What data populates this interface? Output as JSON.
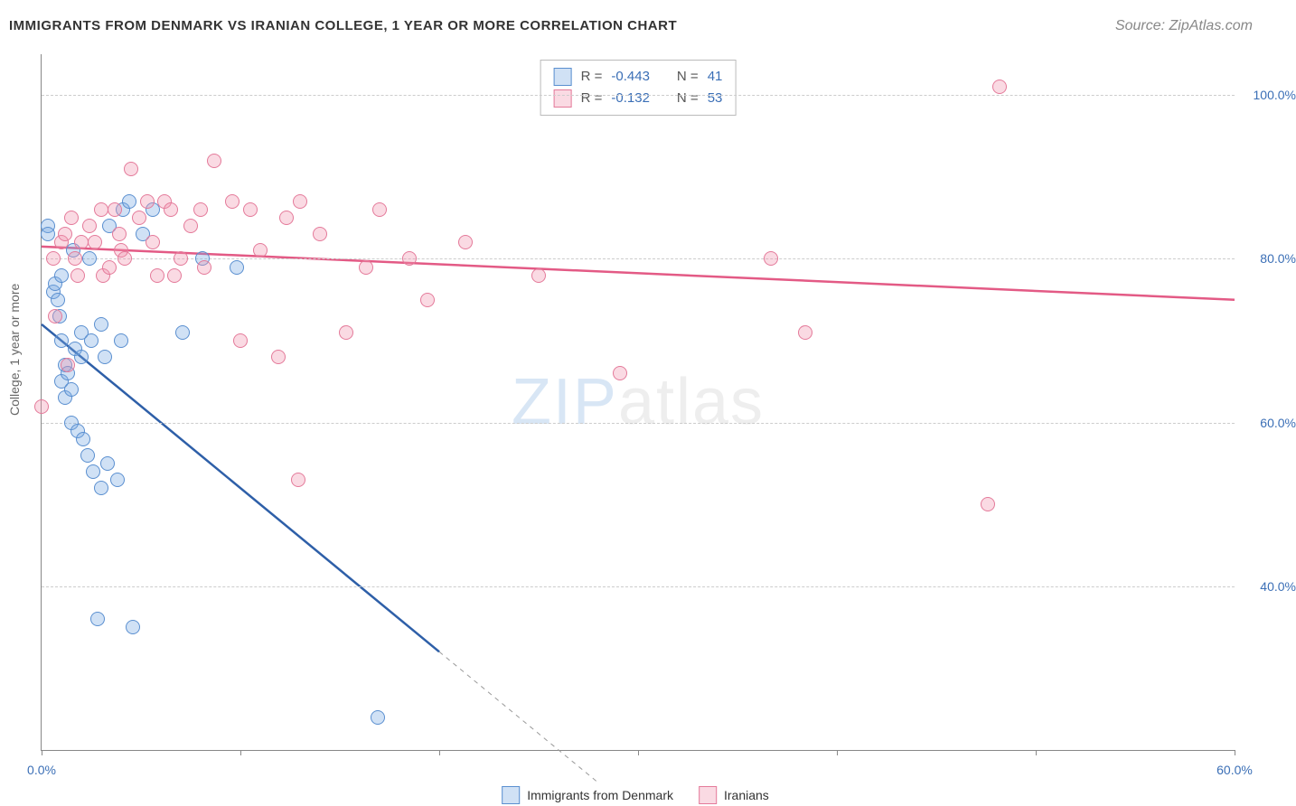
{
  "title": "IMMIGRANTS FROM DENMARK VS IRANIAN COLLEGE, 1 YEAR OR MORE CORRELATION CHART",
  "title_fontsize": 15,
  "title_color": "#333333",
  "source_text": "Source: ZipAtlas.com",
  "ylabel": "College, 1 year or more",
  "xaxis": {
    "min": 0.0,
    "max": 60.0,
    "ticks": [
      0.0,
      10.0,
      20.0,
      30.0,
      40.0,
      50.0,
      60.0
    ],
    "tick_labels": [
      "0.0%",
      "",
      "",
      "",
      "",
      "",
      "60.0%"
    ],
    "label_color": "#3b6fb6"
  },
  "yaxis": {
    "min": 20.0,
    "max": 105.0,
    "grid": [
      40.0,
      60.0,
      80.0,
      100.0
    ],
    "tick_labels": [
      "40.0%",
      "60.0%",
      "80.0%",
      "100.0%"
    ],
    "label_color": "#3b6fb6"
  },
  "watermark": {
    "part1": "ZIP",
    "part2": "atlas"
  },
  "series": [
    {
      "key": "denmark",
      "label": "Immigrants from Denmark",
      "color_fill": "rgba(120,170,225,0.35)",
      "color_stroke": "#5a8fd0",
      "line_color": "#2e5fa8",
      "marker_r": 8,
      "R": "-0.443",
      "N": "41",
      "trend": {
        "x1": 0.0,
        "y1": 72.0,
        "x2": 20.0,
        "y2": 32.0,
        "dash_to_x": 28.0,
        "dash_to_y": 16.0
      },
      "points": [
        [
          0.3,
          84
        ],
        [
          0.3,
          83
        ],
        [
          0.6,
          76
        ],
        [
          0.7,
          77
        ],
        [
          0.8,
          75
        ],
        [
          0.9,
          73
        ],
        [
          1.0,
          70
        ],
        [
          1.0,
          65
        ],
        [
          1.0,
          78
        ],
        [
          1.2,
          67
        ],
        [
          1.2,
          63
        ],
        [
          1.3,
          66
        ],
        [
          1.5,
          64
        ],
        [
          1.5,
          60
        ],
        [
          1.6,
          81
        ],
        [
          1.7,
          69
        ],
        [
          1.8,
          59
        ],
        [
          2.0,
          71
        ],
        [
          2.0,
          68
        ],
        [
          2.1,
          58
        ],
        [
          2.3,
          56
        ],
        [
          2.4,
          80
        ],
        [
          2.5,
          70
        ],
        [
          2.6,
          54
        ],
        [
          2.8,
          36
        ],
        [
          3.0,
          52
        ],
        [
          3.0,
          72
        ],
        [
          3.2,
          68
        ],
        [
          3.3,
          55
        ],
        [
          3.4,
          84
        ],
        [
          3.8,
          53
        ],
        [
          4.0,
          70
        ],
        [
          4.1,
          86
        ],
        [
          4.6,
          35
        ],
        [
          5.1,
          83
        ],
        [
          5.6,
          86
        ],
        [
          7.1,
          71
        ],
        [
          8.1,
          80
        ],
        [
          9.8,
          79
        ],
        [
          16.9,
          24
        ],
        [
          4.4,
          87
        ]
      ]
    },
    {
      "key": "iranians",
      "label": "Iranians",
      "color_fill": "rgba(240,150,175,0.35)",
      "color_stroke": "#e47a9a",
      "line_color": "#e35a85",
      "marker_r": 8,
      "R": "-0.132",
      "N": "53",
      "trend": {
        "x1": 0.0,
        "y1": 81.5,
        "x2": 60.0,
        "y2": 75.0
      },
      "points": [
        [
          0.0,
          62
        ],
        [
          0.6,
          80
        ],
        [
          0.7,
          73
        ],
        [
          1.0,
          82
        ],
        [
          1.2,
          83
        ],
        [
          1.3,
          67
        ],
        [
          1.5,
          85
        ],
        [
          1.7,
          80
        ],
        [
          1.8,
          78
        ],
        [
          2.0,
          82
        ],
        [
          2.4,
          84
        ],
        [
          2.7,
          82
        ],
        [
          3.0,
          86
        ],
        [
          3.1,
          78
        ],
        [
          3.4,
          79
        ],
        [
          3.7,
          86
        ],
        [
          3.9,
          83
        ],
        [
          4.0,
          81
        ],
        [
          4.2,
          80
        ],
        [
          4.5,
          91
        ],
        [
          4.9,
          85
        ],
        [
          5.3,
          87
        ],
        [
          5.6,
          82
        ],
        [
          5.8,
          78
        ],
        [
          6.2,
          87
        ],
        [
          6.5,
          86
        ],
        [
          6.7,
          78
        ],
        [
          7.0,
          80
        ],
        [
          7.5,
          84
        ],
        [
          8.0,
          86
        ],
        [
          8.2,
          79
        ],
        [
          8.7,
          92
        ],
        [
          9.6,
          87
        ],
        [
          10.0,
          70
        ],
        [
          10.5,
          86
        ],
        [
          11.0,
          81
        ],
        [
          11.9,
          68
        ],
        [
          12.3,
          85
        ],
        [
          13.0,
          87
        ],
        [
          14.0,
          83
        ],
        [
          15.3,
          71
        ],
        [
          16.3,
          79
        ],
        [
          17.0,
          86
        ],
        [
          18.5,
          80
        ],
        [
          19.4,
          75
        ],
        [
          21.3,
          82
        ],
        [
          25.0,
          78
        ],
        [
          29.1,
          66
        ],
        [
          36.7,
          80
        ],
        [
          38.4,
          71
        ],
        [
          47.6,
          50
        ],
        [
          48.2,
          101
        ],
        [
          12.9,
          53
        ]
      ]
    }
  ],
  "legend_top": {
    "r_label": "R =",
    "n_label": "N =",
    "value_color": "#3b6fb6",
    "text_color": "#555555"
  },
  "colors": {
    "grid": "#d0d0d0",
    "axis": "#888888",
    "bg": "#ffffff"
  }
}
